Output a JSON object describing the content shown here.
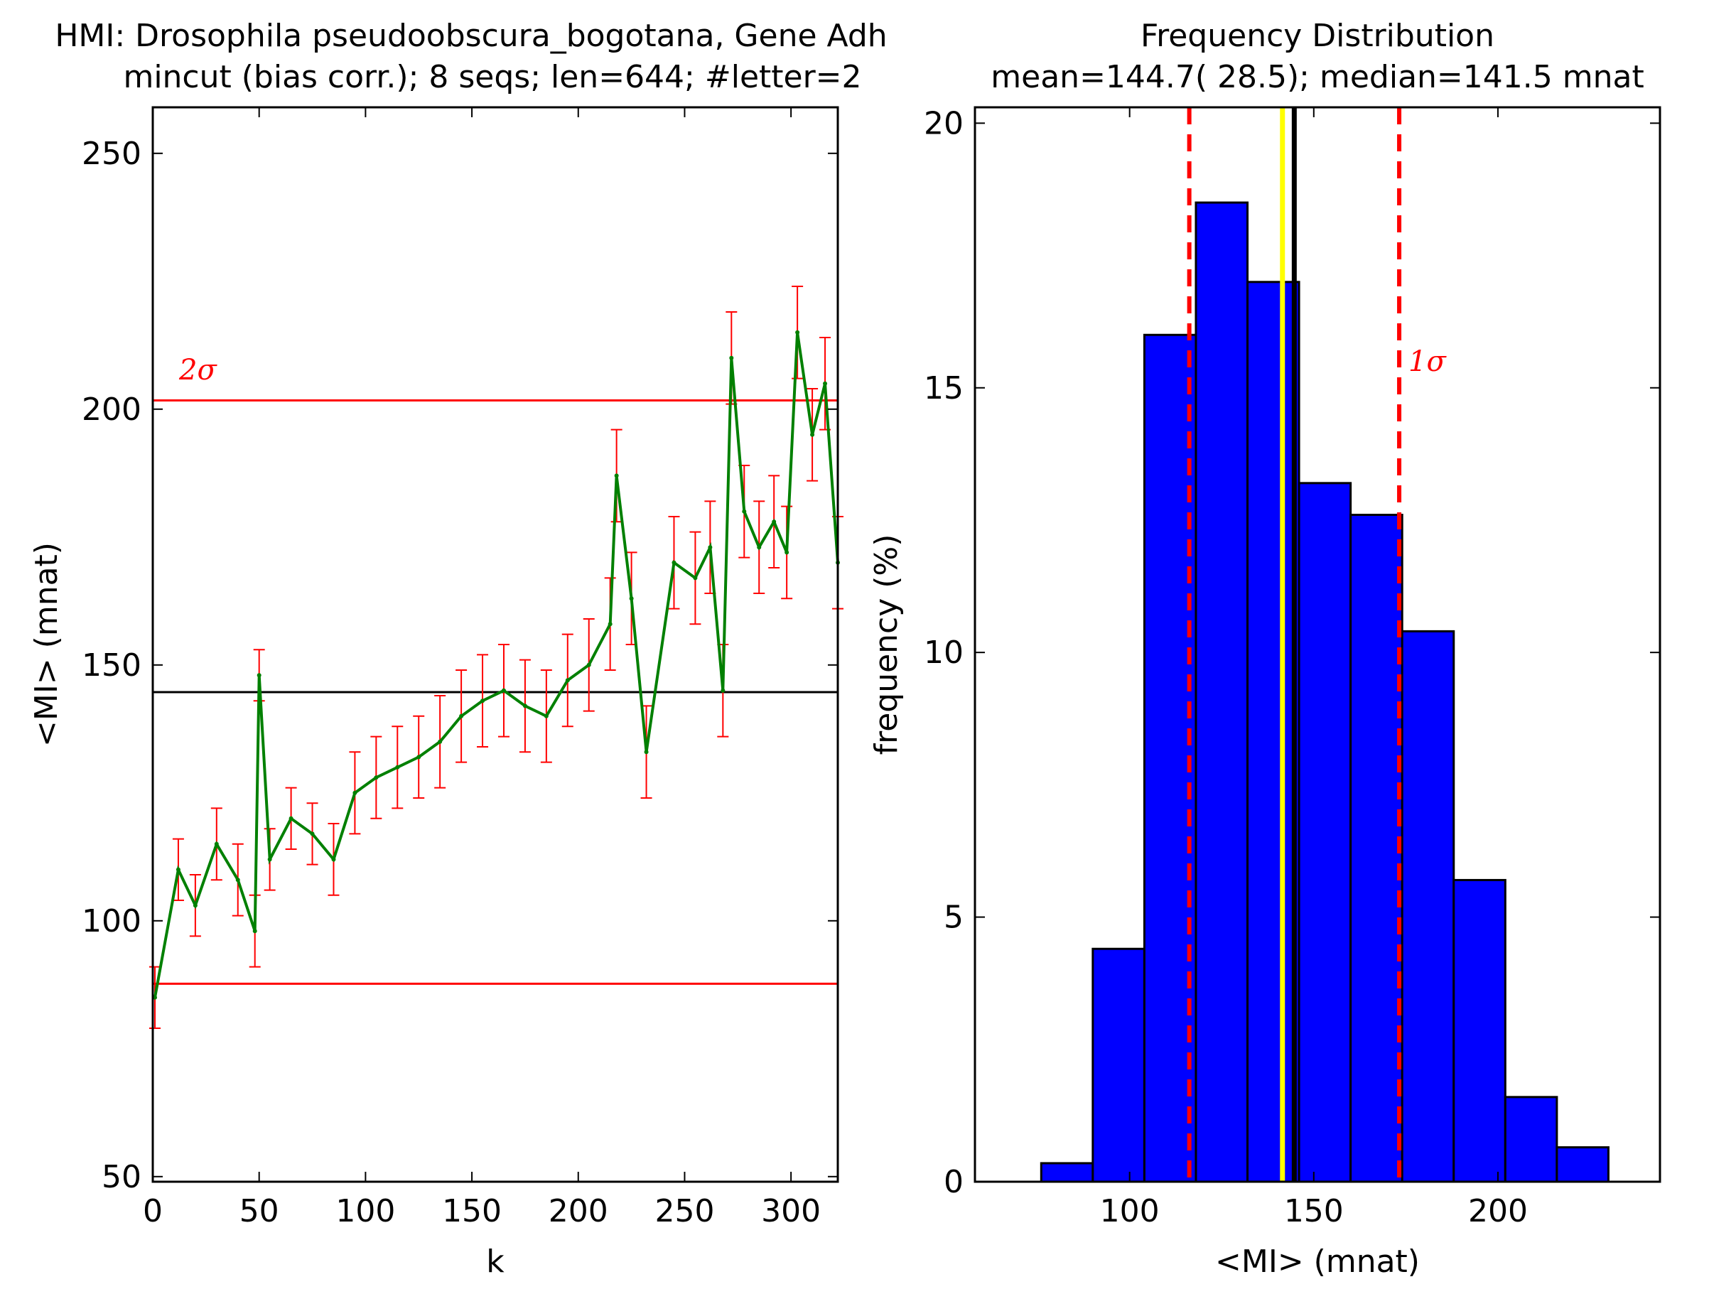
{
  "chart_data": [
    {
      "type": "line",
      "title": "HMI: Drosophila pseudoobscura_bogotana, Gene Adh",
      "subtitle": "mincut (bias corr.); 8 seqs; len=644; #letter=2",
      "xlabel": "k",
      "ylabel": "<MI> (mnat)",
      "xlim": [
        0,
        322
      ],
      "ylim": [
        49,
        259
      ],
      "xticks": [
        "0",
        "50",
        "100",
        "150",
        "200",
        "250",
        "300"
      ],
      "yticks": [
        "50",
        "100",
        "150",
        "200",
        "250"
      ],
      "grid": false,
      "reference_lines": [
        {
          "y": 201.7,
          "color": "#ff0000",
          "annotation": "2σ"
        },
        {
          "y": 144.7,
          "color": "#000000"
        },
        {
          "y": 87.7,
          "color": "#ff0000"
        }
      ],
      "series": [
        {
          "color": "#008000",
          "error_color": "#ff0000",
          "x": [
            1,
            12,
            20,
            30,
            40,
            48,
            50,
            55,
            65,
            75,
            85,
            95,
            105,
            115,
            125,
            135,
            145,
            155,
            165,
            175,
            185,
            195,
            205,
            215,
            218,
            225,
            232,
            245,
            255,
            262,
            268,
            272,
            278,
            285,
            292,
            298,
            303,
            310,
            316,
            322
          ],
          "y": [
            85,
            110,
            103,
            115,
            108,
            98,
            148,
            112,
            120,
            117,
            112,
            125,
            128,
            130,
            132,
            135,
            140,
            143,
            145,
            142,
            140,
            147,
            150,
            158,
            187,
            163,
            133,
            170,
            167,
            173,
            145,
            210,
            180,
            173,
            178,
            172,
            215,
            195,
            205,
            170
          ],
          "err": [
            6,
            6,
            6,
            7,
            7,
            7,
            5,
            6,
            6,
            6,
            7,
            8,
            8,
            8,
            8,
            9,
            9,
            9,
            9,
            9,
            9,
            9,
            9,
            9,
            9,
            9,
            9,
            9,
            9,
            9,
            9,
            9,
            9,
            9,
            9,
            9,
            9,
            9,
            9,
            9
          ]
        }
      ]
    },
    {
      "type": "bar",
      "title": "Frequency Distribution",
      "subtitle": "mean=144.7( 28.5); median=141.5 mnat",
      "xlabel": "<MI> (mnat)",
      "ylabel": "frequency (%)",
      "xlim": [
        58,
        244
      ],
      "ylim": [
        0,
        20.3
      ],
      "xticks": [
        "100",
        "150",
        "200"
      ],
      "yticks": [
        "0",
        "5",
        "10",
        "15",
        "20"
      ],
      "grid": false,
      "bin_edges": [
        76,
        90,
        104,
        118,
        132,
        146,
        160,
        174,
        188,
        202,
        216,
        230
      ],
      "values": [
        0.35,
        4.4,
        16.0,
        18.5,
        17.0,
        13.2,
        12.6,
        10.4,
        5.7,
        1.6,
        0.65
      ],
      "bar_color": "#0000ff",
      "reference_lines": [
        {
          "x": 116.2,
          "color": "#ff0000",
          "style": "dashed"
        },
        {
          "x": 141.5,
          "color": "#ffff00"
        },
        {
          "x": 144.7,
          "color": "#000000"
        },
        {
          "x": 173.2,
          "color": "#ff0000",
          "style": "dashed",
          "annotation": "1σ"
        }
      ]
    }
  ]
}
